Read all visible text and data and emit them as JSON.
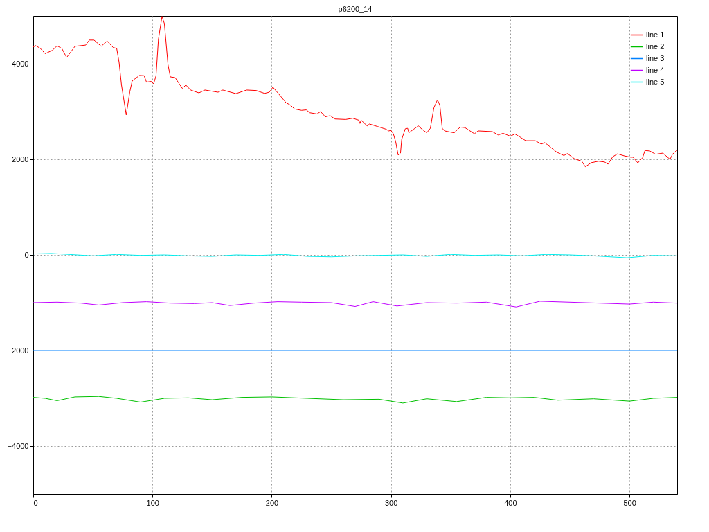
{
  "chart_data": {
    "type": "line",
    "title": "p6200_14",
    "xlim": [
      0,
      540
    ],
    "xticks": [
      0,
      100,
      200,
      300,
      400,
      500
    ],
    "ylim": [
      -5000,
      5000
    ],
    "yticks": [
      -4000,
      -2000,
      0,
      2000,
      4000
    ],
    "grid": true,
    "legend": "top right",
    "line_style": "solid",
    "series": [
      {
        "name": "line 1",
        "color": "#ff0000",
        "x": [
          0,
          2,
          6,
          10,
          16,
          20,
          24,
          28,
          31,
          35,
          44,
          47,
          51,
          57,
          62,
          67,
          70,
          72,
          74,
          78,
          81,
          83,
          89,
          93,
          95,
          99,
          101,
          103,
          105,
          108,
          110,
          113,
          115,
          119,
          125,
          128,
          132,
          139,
          144,
          155,
          159,
          170,
          179,
          187,
          194,
          198,
          201,
          206,
          212,
          216,
          219,
          225,
          229,
          232,
          238,
          241,
          245,
          249,
          253,
          262,
          268,
          273,
          274,
          275,
          280,
          282,
          289,
          296,
          298,
          300,
          302,
          304,
          306,
          308,
          309,
          312,
          314,
          315,
          319,
          323,
          326,
          330,
          333,
          336,
          339,
          341,
          343,
          345,
          353,
          358,
          362,
          370,
          373,
          385,
          390,
          394,
          400,
          404,
          408,
          413,
          421,
          426,
          429,
          434,
          439,
          445,
          448,
          454,
          460,
          463,
          468,
          474,
          479,
          482,
          486,
          490,
          496,
          501,
          503,
          507,
          511,
          513,
          517,
          522,
          528,
          534,
          536,
          539,
          540
        ],
        "values": [
          4350,
          4380,
          4320,
          4210,
          4280,
          4375,
          4320,
          4130,
          4230,
          4365,
          4390,
          4495,
          4495,
          4365,
          4475,
          4340,
          4320,
          4030,
          3560,
          2930,
          3415,
          3640,
          3755,
          3750,
          3615,
          3630,
          3580,
          3750,
          4510,
          4990,
          4840,
          3985,
          3725,
          3710,
          3485,
          3555,
          3450,
          3390,
          3450,
          3405,
          3450,
          3375,
          3450,
          3440,
          3380,
          3405,
          3510,
          3365,
          3185,
          3130,
          3055,
          3025,
          3035,
          2975,
          2950,
          3000,
          2890,
          2915,
          2845,
          2835,
          2860,
          2820,
          2750,
          2820,
          2700,
          2740,
          2685,
          2630,
          2595,
          2605,
          2535,
          2365,
          2090,
          2130,
          2415,
          2640,
          2650,
          2555,
          2630,
          2700,
          2630,
          2555,
          2650,
          3080,
          3245,
          3130,
          2650,
          2595,
          2555,
          2675,
          2665,
          2535,
          2595,
          2580,
          2510,
          2545,
          2485,
          2530,
          2470,
          2390,
          2390,
          2320,
          2350,
          2250,
          2150,
          2080,
          2120,
          2010,
          1960,
          1845,
          1930,
          1960,
          1945,
          1900,
          2055,
          2115,
          2070,
          2045,
          2045,
          1925,
          2035,
          2185,
          2175,
          2105,
          2130,
          2000,
          2105,
          2175,
          2190
        ]
      },
      {
        "name": "line 2",
        "color": "#00c000",
        "x": [
          0,
          10,
          20,
          35,
          55,
          70,
          90,
          110,
          130,
          150,
          175,
          200,
          230,
          260,
          290,
          310,
          330,
          355,
          380,
          400,
          420,
          440,
          470,
          500,
          520,
          540
        ],
        "values": [
          -2980,
          -3000,
          -3050,
          -2970,
          -2960,
          -3000,
          -3080,
          -3000,
          -2990,
          -3030,
          -2980,
          -2970,
          -3000,
          -3030,
          -3020,
          -3100,
          -3010,
          -3070,
          -2980,
          -2990,
          -2980,
          -3040,
          -3010,
          -3060,
          -3000,
          -2980
        ]
      },
      {
        "name": "line 3",
        "color": "#0080ff",
        "x": [
          0,
          540
        ],
        "values": [
          -2000,
          -2000
        ]
      },
      {
        "name": "line 4",
        "color": "#c000ff",
        "x": [
          0,
          20,
          40,
          55,
          75,
          95,
          115,
          135,
          150,
          165,
          185,
          205,
          225,
          250,
          270,
          285,
          305,
          330,
          355,
          380,
          405,
          425,
          450,
          475,
          500,
          520,
          540
        ],
        "values": [
          -1000,
          -990,
          -1010,
          -1050,
          -1000,
          -980,
          -1010,
          -1020,
          -1000,
          -1060,
          -1010,
          -980,
          -990,
          -1000,
          -1080,
          -980,
          -1070,
          -1000,
          -1010,
          -990,
          -1090,
          -970,
          -990,
          -1010,
          -1030,
          -990,
          -1010
        ]
      },
      {
        "name": "line 5",
        "color": "#00eeee",
        "x": [
          0,
          15,
          30,
          50,
          70,
          90,
          110,
          130,
          150,
          170,
          190,
          210,
          230,
          250,
          270,
          290,
          310,
          330,
          350,
          370,
          390,
          410,
          430,
          450,
          470,
          498,
          520,
          540
        ],
        "values": [
          20,
          30,
          10,
          -20,
          10,
          -10,
          0,
          -20,
          -30,
          0,
          -10,
          10,
          -30,
          -40,
          -20,
          -10,
          0,
          -30,
          10,
          -10,
          0,
          -20,
          10,
          0,
          -20,
          -60,
          -10,
          -20
        ]
      }
    ]
  }
}
